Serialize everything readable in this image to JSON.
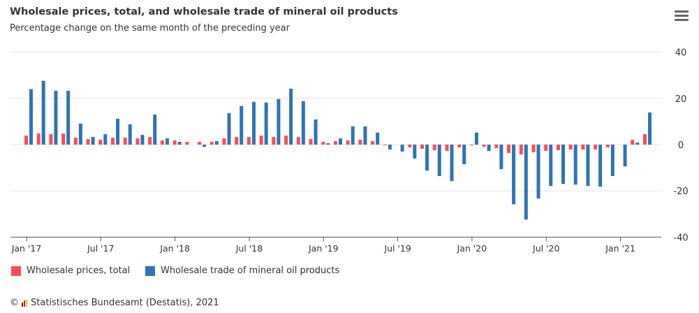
{
  "header": {
    "title": "Wholesale prices, total, and wholesale trade of mineral oil products",
    "subtitle": "Percentage change on the same month of the preceding year",
    "menu_icon": "hamburger-menu-icon"
  },
  "footer": {
    "copyright_symbol": "©",
    "credit": "Statistisches Bundesamt (Destatis), 2021",
    "logo_icon": "destatis-logo-icon"
  },
  "chart_data": {
    "type": "bar",
    "title": "Wholesale prices, total, and wholesale trade of mineral oil products",
    "subtitle": "Percentage change on the same month of the preceding year",
    "categories": [
      "2017-01",
      "2017-02",
      "2017-03",
      "2017-04",
      "2017-05",
      "2017-06",
      "2017-07",
      "2017-08",
      "2017-09",
      "2017-10",
      "2017-11",
      "2017-12",
      "2018-01",
      "2018-02",
      "2018-03",
      "2018-04",
      "2018-05",
      "2018-06",
      "2018-07",
      "2018-08",
      "2018-09",
      "2018-10",
      "2018-11",
      "2018-12",
      "2019-01",
      "2019-02",
      "2019-03",
      "2019-04",
      "2019-05",
      "2019-06",
      "2019-07",
      "2019-08",
      "2019-09",
      "2019-10",
      "2019-11",
      "2019-12",
      "2020-01",
      "2020-02",
      "2020-03",
      "2020-04",
      "2020-05",
      "2020-06",
      "2020-07",
      "2020-08",
      "2020-09",
      "2020-10",
      "2020-11",
      "2020-12",
      "2021-01",
      "2021-02",
      "2021-03"
    ],
    "x_tick_labels": [
      "Jan '17",
      "Jul '17",
      "Jan '18",
      "Jul '18",
      "Jan '19",
      "Jul '19",
      "Jan '20",
      "Jul '20",
      "Jan '21"
    ],
    "y_ticks": [
      40,
      20,
      0,
      -20,
      -40
    ],
    "ylim": [
      -40,
      40
    ],
    "y_axis_side": "right",
    "grid": true,
    "legend_position": "bottom-left",
    "series": [
      {
        "name": "Wholesale prices, total",
        "color": "#ff4b55",
        "values": [
          3.9,
          4.8,
          4.5,
          4.8,
          3.0,
          2.4,
          2.1,
          3.0,
          3.0,
          2.7,
          3.3,
          1.8,
          1.8,
          1.2,
          1.2,
          1.2,
          2.7,
          3.3,
          3.3,
          3.9,
          3.3,
          3.9,
          3.3,
          2.4,
          1.2,
          1.5,
          1.8,
          2.1,
          1.5,
          -0.3,
          0,
          -1.2,
          -1.8,
          -2.4,
          -2.7,
          -1.2,
          -0.3,
          -0.9,
          -1.5,
          -3.6,
          -4.2,
          -3.3,
          -2.7,
          -2.4,
          -2.1,
          -2.1,
          -2.1,
          -1.2,
          0,
          2.1,
          4.5
        ]
      },
      {
        "name": "Wholesale trade of mineral oil products",
        "color": "#2f74b5",
        "values": [
          24.0,
          27.6,
          23.3,
          23.3,
          9.1,
          3.3,
          4.5,
          11.2,
          8.8,
          4.2,
          13.0,
          2.7,
          1.2,
          0,
          -1.0,
          1.5,
          13.6,
          16.7,
          18.5,
          18.2,
          19.7,
          24.2,
          18.8,
          10.9,
          0.6,
          2.7,
          7.9,
          7.9,
          5.2,
          -2.1,
          -3.0,
          -6.0,
          -11.2,
          -13.6,
          -15.8,
          -8.5,
          5.2,
          -2.7,
          -10.6,
          -25.8,
          -32.4,
          -23.3,
          -17.9,
          -17.0,
          -17.3,
          -17.9,
          -18.2,
          -13.6,
          -9.4,
          0.9,
          13.9
        ]
      }
    ]
  }
}
